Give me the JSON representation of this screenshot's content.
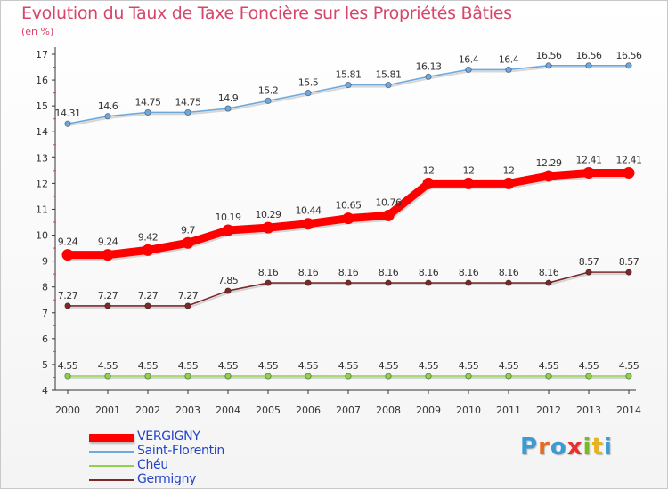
{
  "title": "Evolution du Taux de Taxe Foncière sur les Propriétés Bâties",
  "subtitle": "(en %)",
  "logo": {
    "text": "Proxiti",
    "letters": [
      "P",
      "r",
      "o",
      "x",
      "i",
      "t",
      "i"
    ],
    "colors": [
      "#3a9bd5",
      "#e86a1c",
      "#3a9bd5",
      "#e83030",
      "#7ab82a",
      "#e8b21c",
      "#3a9bd5"
    ]
  },
  "chart_data": {
    "type": "line",
    "title": "Evolution du Taux de Taxe Foncière sur les Propriétés Bâties",
    "ylabel": "(en %)",
    "xlabel": "",
    "x": [
      "2000",
      "2001",
      "2002",
      "2003",
      "2004",
      "2005",
      "2006",
      "2007",
      "2008",
      "2009",
      "2010",
      "2011",
      "2012",
      "2013",
      "2014"
    ],
    "ylim": [
      4,
      17
    ],
    "yticks": [
      4,
      5,
      6,
      7,
      8,
      9,
      10,
      11,
      12,
      13,
      14,
      15,
      16,
      17
    ],
    "grid": false,
    "legend_position": "bottom-left",
    "series": [
      {
        "name": "VERGIGNY",
        "color": "#ff0000",
        "labels": [
          "9.24",
          "9.24",
          "9.42",
          "9.7",
          "10.19",
          "10.29",
          "10.44",
          "10.65",
          "10.76",
          "12",
          "12",
          "12",
          "12.29",
          "12.41",
          "12.41"
        ],
        "values": [
          9.24,
          9.24,
          9.42,
          9.7,
          10.19,
          10.29,
          10.44,
          10.65,
          10.76,
          12,
          12,
          12,
          12.29,
          12.41,
          12.41
        ]
      },
      {
        "name": "Saint-Florentin",
        "color": "#6fa8dc",
        "labels": [
          "14.31",
          "14.6",
          "14.75",
          "14.75",
          "14.9",
          "15.2",
          "15.5",
          "15.81",
          "15.81",
          "16.13",
          "16.4",
          "16.4",
          "16.56",
          "16.56",
          "16.56"
        ],
        "values": [
          14.31,
          14.6,
          14.75,
          14.75,
          14.9,
          15.2,
          15.5,
          15.81,
          15.81,
          16.13,
          16.4,
          16.4,
          16.56,
          16.56,
          16.56
        ]
      },
      {
        "name": "Chéu",
        "color": "#8fd14f",
        "labels": [
          "4.55",
          "4.55",
          "4.55",
          "4.55",
          "4.55",
          "4.55",
          "4.55",
          "4.55",
          "4.55",
          "4.55",
          "4.55",
          "4.55",
          "4.55",
          "4.55",
          "4.55"
        ],
        "values": [
          4.55,
          4.55,
          4.55,
          4.55,
          4.55,
          4.55,
          4.55,
          4.55,
          4.55,
          4.55,
          4.55,
          4.55,
          4.55,
          4.55,
          4.55
        ]
      },
      {
        "name": "Germigny",
        "color": "#7a2a2a",
        "labels": [
          "7.27",
          "7.27",
          "7.27",
          "7.27",
          "7.85",
          "8.16",
          "8.16",
          "8.16",
          "8.16",
          "8.16",
          "8.16",
          "8.16",
          "8.16",
          "8.57",
          "8.57"
        ],
        "values": [
          7.27,
          7.27,
          7.27,
          7.27,
          7.85,
          8.16,
          8.16,
          8.16,
          8.16,
          8.16,
          8.16,
          8.16,
          8.16,
          8.57,
          8.57
        ]
      }
    ]
  }
}
